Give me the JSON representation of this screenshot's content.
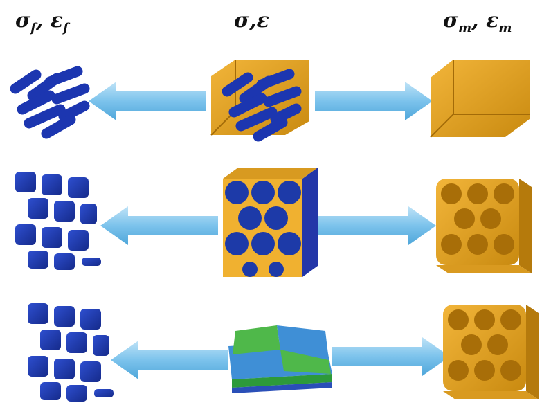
{
  "headers": {
    "left": {
      "sigma": "σ",
      "sigma_sub": "f",
      "sep": ",",
      "epsilon": "ε",
      "epsilon_sub": "f"
    },
    "center": "σ,ε",
    "right": {
      "sigma": "σ",
      "sigma_sub": "m",
      "sep": ",",
      "epsilon": "ε",
      "epsilon_sub": "m"
    }
  }
}
